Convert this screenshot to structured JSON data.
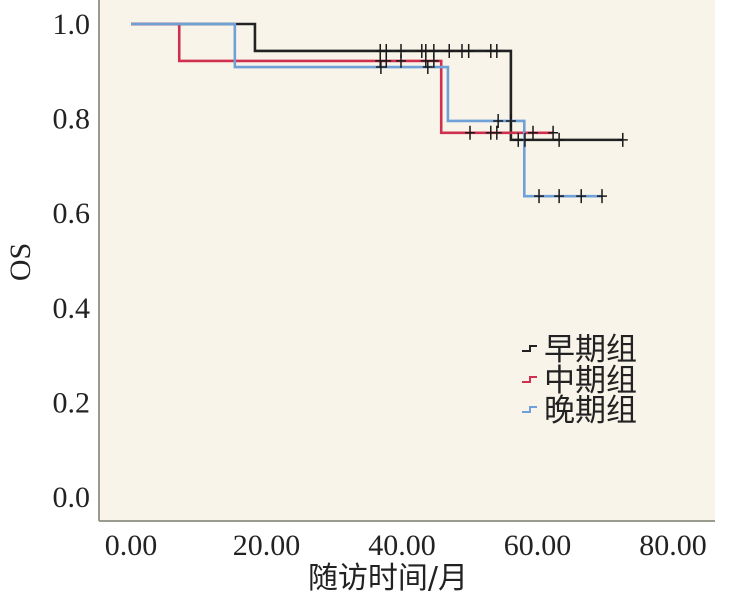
{
  "chart_data": {
    "type": "line",
    "subtype": "kaplan-meier step",
    "title": "",
    "xlabel": "随访时间/月",
    "ylabel": "OS",
    "xlim": [
      -5,
      87
    ],
    "ylim": [
      -0.05,
      1.05
    ],
    "x_ticks": [
      "0.00",
      "20.00",
      "40.00",
      "60.00",
      "80.00"
    ],
    "x_tick_values": [
      0,
      20,
      40,
      60,
      80
    ],
    "y_ticks": [
      "0.0",
      "0.2",
      "0.4",
      "0.6",
      "0.8",
      "1.0"
    ],
    "y_tick_values": [
      0,
      0.2,
      0.4,
      0.6,
      0.8,
      1.0
    ],
    "grid": false,
    "background": "#f8f4ea",
    "legend_position": "right-middle",
    "series": [
      {
        "name": "早期组",
        "color": "#222222",
        "steps": [
          [
            0,
            1.0
          ],
          [
            18.5,
            0.943
          ],
          [
            56.7,
            0.755
          ]
        ],
        "end": 73.4,
        "censored": [
          [
            37.2,
            0.943
          ],
          [
            38.1,
            0.943
          ],
          [
            40.3,
            0.943
          ],
          [
            43.4,
            0.943
          ],
          [
            44.0,
            0.943
          ],
          [
            45.2,
            0.943
          ],
          [
            47.5,
            0.943
          ],
          [
            49.4,
            0.943
          ],
          [
            50.4,
            0.943
          ],
          [
            53.7,
            0.943
          ],
          [
            54.6,
            0.943
          ],
          [
            57.8,
            0.755
          ],
          [
            58.8,
            0.755
          ],
          [
            63.9,
            0.755
          ],
          [
            73.4,
            0.755
          ]
        ]
      },
      {
        "name": "中期组",
        "color": "#d0304f",
        "steps": [
          [
            0,
            1.0
          ],
          [
            7.2,
            0.922
          ],
          [
            46.3,
            0.77
          ]
        ],
        "end": 63.0,
        "censored": [
          [
            37.2,
            0.922
          ],
          [
            38.1,
            0.922
          ],
          [
            40.3,
            0.922
          ],
          [
            44.0,
            0.922
          ],
          [
            45.2,
            0.922
          ],
          [
            50.6,
            0.77
          ],
          [
            53.7,
            0.77
          ],
          [
            54.6,
            0.77
          ],
          [
            60.0,
            0.77
          ],
          [
            63.0,
            0.77
          ]
        ]
      },
      {
        "name": "晚期组",
        "color": "#6fa0d8",
        "steps": [
          [
            0,
            1.0
          ],
          [
            15.5,
            0.909
          ],
          [
            47.3,
            0.795
          ],
          [
            58.7,
            0.636
          ]
        ],
        "end": 70.3,
        "censored": [
          [
            37.3,
            0.909
          ],
          [
            44.3,
            0.909
          ],
          [
            54.8,
            0.795
          ],
          [
            56.7,
            0.795
          ],
          [
            60.9,
            0.636
          ],
          [
            63.9,
            0.636
          ],
          [
            67.2,
            0.636
          ],
          [
            70.3,
            0.636
          ]
        ]
      }
    ]
  }
}
